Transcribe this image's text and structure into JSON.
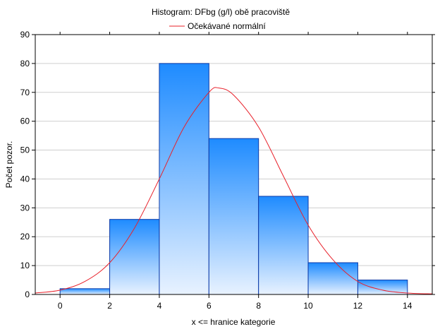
{
  "chart_data": {
    "type": "bar",
    "title": "Histogram: DFbg (g/l) obě pracoviště",
    "legend": {
      "position": "top",
      "entries": [
        {
          "label": "Očekávané normální",
          "color": "#e8202a"
        }
      ]
    },
    "xlabel": "x <= hranice kategorie",
    "ylabel": "Počet pozor.",
    "xlim": [
      -1,
      15
    ],
    "ylim": [
      0,
      90
    ],
    "x_ticks": [
      0,
      2,
      4,
      6,
      8,
      10,
      12,
      14
    ],
    "y_ticks": [
      0,
      10,
      20,
      30,
      40,
      50,
      60,
      70,
      80,
      90
    ],
    "grid": "horizontal",
    "bins": [
      {
        "from": 0,
        "to": 2,
        "count": 2
      },
      {
        "from": 2,
        "to": 4,
        "count": 26
      },
      {
        "from": 4,
        "to": 6,
        "count": 80
      },
      {
        "from": 6,
        "to": 8,
        "count": 54
      },
      {
        "from": 8,
        "to": 10,
        "count": 34
      },
      {
        "from": 10,
        "to": 12,
        "count": 11
      },
      {
        "from": 12,
        "to": 14,
        "count": 5
      },
      {
        "from": 14,
        "to": 15,
        "count": 0
      }
    ],
    "series": [
      {
        "type": "line",
        "x": [
          -1,
          0,
          1,
          2,
          3,
          4,
          5,
          6,
          6.4,
          7,
          8,
          9,
          10,
          11,
          12,
          13,
          14,
          15
        ],
        "values": [
          0.5,
          1.5,
          4.5,
          11,
          23,
          40,
          58,
          70,
          71.5,
          69,
          58,
          41,
          24,
          12,
          4.5,
          1.5,
          0.5,
          0.2
        ]
      }
    ],
    "colors": {
      "bar_top": "#1e8bff",
      "bar_bottom": "#e8f2ff",
      "bar_stroke": "#0b3aa8",
      "curve": "#e8202a",
      "grid": "#cfcfcf"
    }
  }
}
